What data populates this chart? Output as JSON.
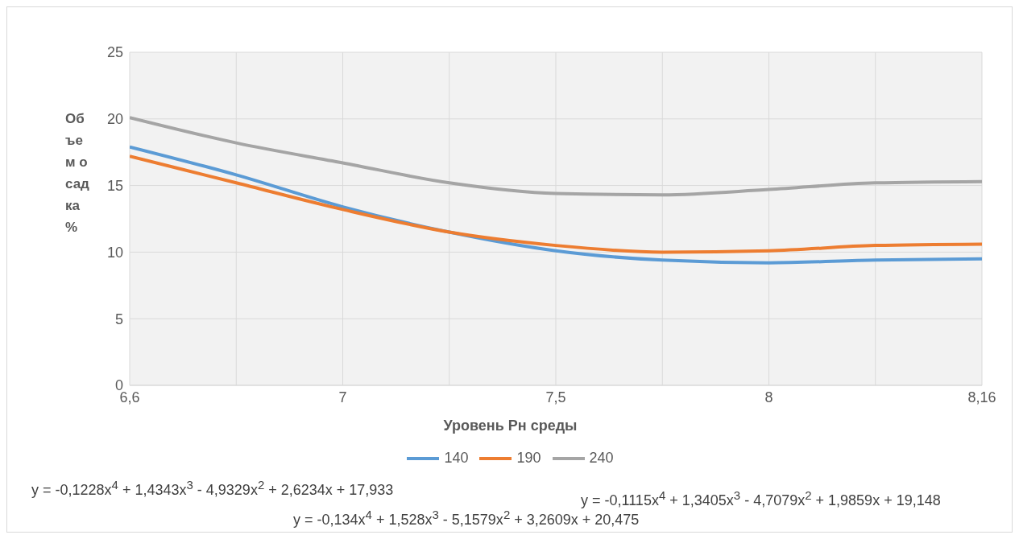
{
  "chart_data": {
    "type": "line",
    "xlabel": "Уровень Рн среды",
    "ylabel": "Объем осадка %",
    "categories": [
      "6,6",
      null,
      "7",
      null,
      "7,5",
      null,
      "8",
      null,
      "8,16"
    ],
    "series": [
      {
        "name": "140",
        "color": "#5b9bd5",
        "values": [
          17.9,
          15.8,
          13.4,
          11.5,
          10.1,
          9.4,
          9.2,
          9.4,
          9.5
        ]
      },
      {
        "name": "190",
        "color": "#ed7d31",
        "values": [
          17.2,
          15.2,
          13.2,
          11.5,
          10.5,
          10.0,
          10.1,
          10.5,
          10.6
        ]
      },
      {
        "name": "240",
        "color": "#a5a5a5",
        "values": [
          20.1,
          18.2,
          16.7,
          15.2,
          14.4,
          14.3,
          14.7,
          15.2,
          15.3
        ]
      }
    ],
    "ylim": [
      0,
      25
    ],
    "yticks": [
      0,
      5,
      10,
      15,
      20,
      25
    ],
    "grid": true,
    "legend": "bottom",
    "marker": "none",
    "line_style": "solid",
    "annotations": [
      "y = -0,1228x$^{4}$ + 1,4343x$^{3}$ - 4,9329x$^{2}$ + 2,6234x + 17,933",
      "y = -0,1115x$^{4}$ + 1,3405x$^{3}$ - 4,7079x$^{2}$ + 1,9859x + 19,148",
      "y = -0,134x$^{4}$ + 1,528x$^{3}$ - 5,1579x$^{2}$ + 3,2609x + 20,475"
    ]
  }
}
